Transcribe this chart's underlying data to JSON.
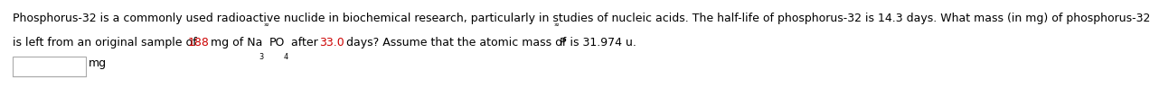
{
  "line1": "Phosphorus-32 is a commonly used radioactive nuclide in biochemical research, particularly in studies of nucleic acids. The half-life of phosphorus-32 is 14.3 days. What mass (in mg) of phosphorus-32",
  "font_size": 9.0,
  "background_color": "#ffffff",
  "text_color": "#000000",
  "highlight_color": "#cc0000",
  "answer_label": "mg",
  "line2_parts": [
    {
      "text": "is left from an original sample of ",
      "color": "#000000",
      "style": "normal"
    },
    {
      "text": "188",
      "color": "#cc0000",
      "style": "normal"
    },
    {
      "text": " mg of Na",
      "color": "#000000",
      "style": "normal"
    },
    {
      "text": "3",
      "color": "#000000",
      "style": "sub"
    },
    {
      "text": "³²",
      "color": "#000000",
      "style": "super"
    },
    {
      "text": "PO",
      "color": "#000000",
      "style": "normal"
    },
    {
      "text": "4",
      "color": "#000000",
      "style": "sub"
    },
    {
      "text": " after ",
      "color": "#000000",
      "style": "normal"
    },
    {
      "text": "33.0",
      "color": "#cc0000",
      "style": "normal"
    },
    {
      "text": " days? Assume that the atomic mass of ",
      "color": "#000000",
      "style": "normal"
    },
    {
      "text": "³²",
      "color": "#000000",
      "style": "super"
    },
    {
      "text": "P is 31.974 u.",
      "color": "#000000",
      "style": "normal"
    }
  ]
}
